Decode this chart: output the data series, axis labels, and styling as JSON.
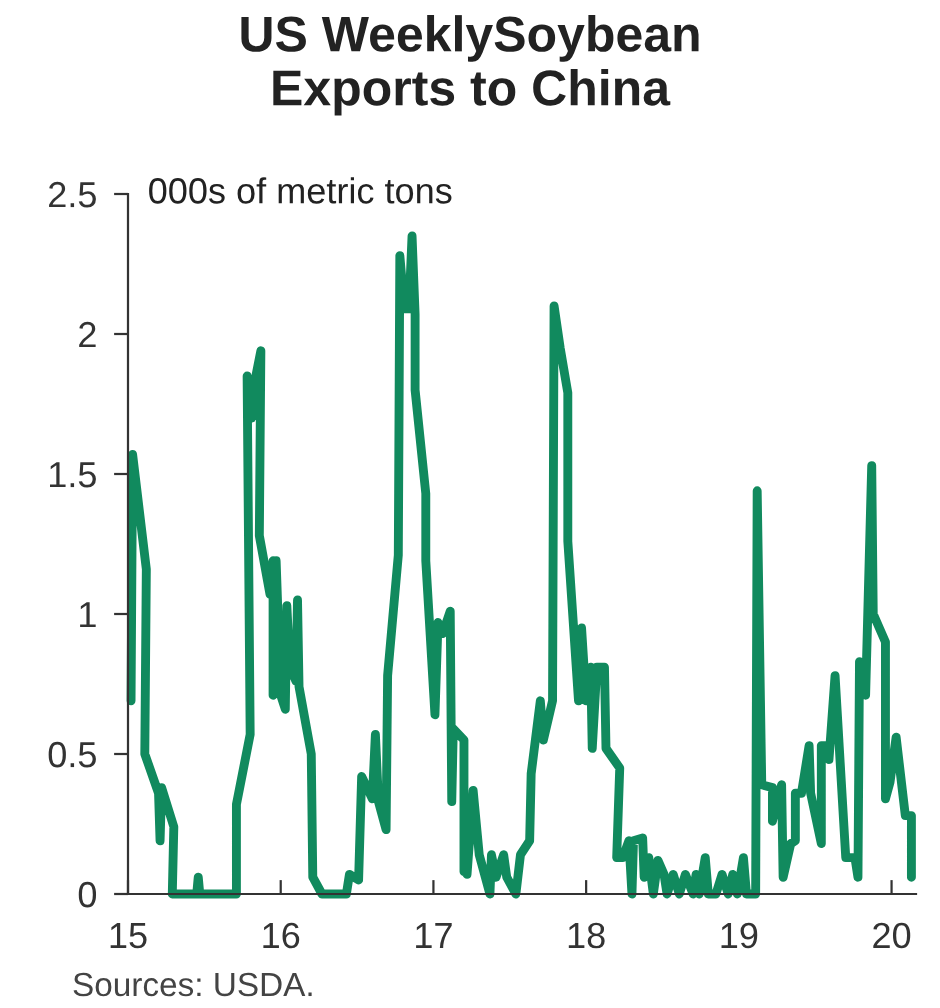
{
  "chart_data": {
    "type": "line",
    "title": "US WeeklySoybean\nExports to China",
    "ylabel": "000s of metric tons",
    "annotations": [
      "Sources: USDA."
    ],
    "xlim": [
      15,
      20.16
    ],
    "xticks": [
      15,
      16,
      17,
      18,
      19,
      20
    ],
    "ylim": [
      0,
      2.5
    ],
    "yticks": [
      0,
      0.5,
      1,
      1.5,
      2,
      2.5
    ],
    "grid": false,
    "legend": false,
    "series": [
      {
        "color": "#118a5e",
        "x": [
          15.02,
          15.03,
          15.12,
          15.11,
          15.2,
          15.21,
          15.22,
          15.3,
          15.29,
          15.45,
          15.46,
          15.47,
          15.71,
          15.71,
          15.8,
          15.78,
          15.81,
          15.83,
          15.87,
          15.86,
          15.93,
          15.95,
          15.95,
          15.97,
          16.0,
          16.03,
          16.04,
          16.06,
          16.1,
          16.11,
          16.12,
          16.2,
          16.21,
          16.27,
          16.43,
          16.45,
          16.51,
          16.53,
          16.6,
          16.62,
          16.64,
          16.69,
          16.7,
          16.77,
          16.78,
          16.81,
          16.84,
          16.86,
          16.88,
          16.88,
          16.95,
          16.95,
          17.01,
          17.03,
          17.06,
          17.11,
          17.12,
          17.13,
          17.2,
          17.2,
          17.21,
          17.22,
          17.26,
          17.3,
          17.37,
          17.38,
          17.41,
          17.46,
          17.48,
          17.54,
          17.57,
          17.63,
          17.64,
          17.7,
          17.72,
          17.78,
          17.79,
          17.83,
          17.88,
          17.88,
          17.95,
          17.97,
          18.0,
          18.03,
          18.04,
          18.07,
          18.12,
          18.13,
          18.22,
          18.2,
          18.24,
          18.28,
          18.3,
          18.31,
          18.37,
          18.38,
          18.41,
          18.44,
          18.47,
          18.51,
          18.53,
          18.57,
          18.61,
          18.65,
          18.7,
          18.72,
          18.74,
          18.78,
          18.8,
          18.85,
          18.89,
          18.93,
          18.96,
          18.99,
          19.03,
          19.05,
          19.11,
          19.12,
          19.15,
          19.22,
          19.22,
          19.28,
          19.29,
          19.34,
          19.37,
          19.37,
          19.41,
          19.46,
          19.47,
          19.54,
          19.54,
          19.59,
          19.59,
          19.63,
          19.7,
          19.76,
          19.78,
          19.79,
          19.83,
          19.87,
          19.88,
          19.96,
          19.96,
          19.99,
          20.03,
          20.09,
          20.13,
          20.13
        ],
        "values": [
          0.69,
          1.57,
          1.16,
          0.5,
          0.36,
          0.19,
          0.38,
          0.24,
          0,
          0,
          0.06,
          0,
          0,
          0.32,
          0.57,
          1.85,
          1.7,
          1.83,
          1.94,
          1.28,
          1.07,
          1.19,
          0.71,
          1.19,
          0.71,
          0.66,
          1.03,
          0.81,
          0.76,
          1.05,
          0.74,
          0.5,
          0.06,
          0,
          0,
          0.07,
          0.05,
          0.42,
          0.34,
          0.57,
          0.33,
          0.23,
          0.78,
          1.21,
          2.28,
          2.09,
          2.09,
          2.35,
          2.07,
          1.8,
          1.43,
          1.19,
          0.64,
          0.97,
          0.93,
          1.01,
          0.33,
          0.59,
          0.55,
          0.08,
          0.33,
          0.07,
          0.37,
          0.14,
          0,
          0.14,
          0.06,
          0.14,
          0.06,
          0,
          0.14,
          0.19,
          0.43,
          0.69,
          0.55,
          0.69,
          2.1,
          1.95,
          1.79,
          1.26,
          0.69,
          0.95,
          0.69,
          0.81,
          0.52,
          0.81,
          0.81,
          0.52,
          0.45,
          0.13,
          0.13,
          0.19,
          0,
          0.19,
          0.2,
          0.06,
          0.13,
          0,
          0.12,
          0.07,
          0,
          0.07,
          0,
          0.07,
          0,
          0.07,
          0,
          0.13,
          0,
          0,
          0.07,
          0,
          0.07,
          0,
          0.13,
          0,
          0,
          1.44,
          0.39,
          0.38,
          0.26,
          0.39,
          0.06,
          0.18,
          0.19,
          0.36,
          0.36,
          0.53,
          0.36,
          0.18,
          0.53,
          0.53,
          0.48,
          0.78,
          0.13,
          0.13,
          0.06,
          0.83,
          0.71,
          1.53,
          1.0,
          0.9,
          0.34,
          0.4,
          0.56,
          0.28,
          0.28,
          0.06
        ]
      }
    ]
  }
}
